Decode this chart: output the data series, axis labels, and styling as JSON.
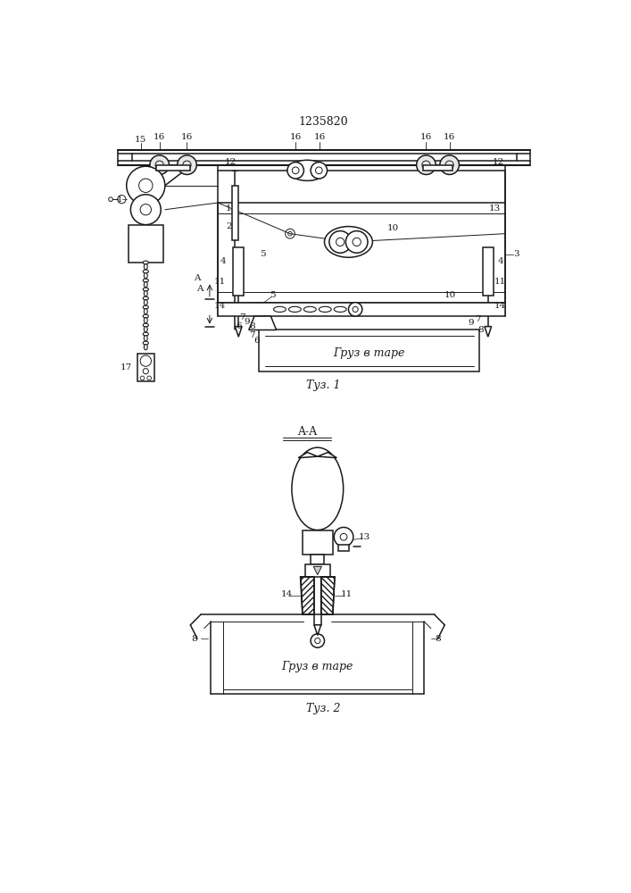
{
  "title": "1235820",
  "fig1_caption": "Τуз. 1",
  "fig2_caption": "Τуз. 2",
  "section_label": "A-A",
  "cargo_label1": "Груз в таре",
  "cargo_label2": "Груз в таре",
  "bg_color": "#ffffff",
  "line_color": "#1a1a1a"
}
